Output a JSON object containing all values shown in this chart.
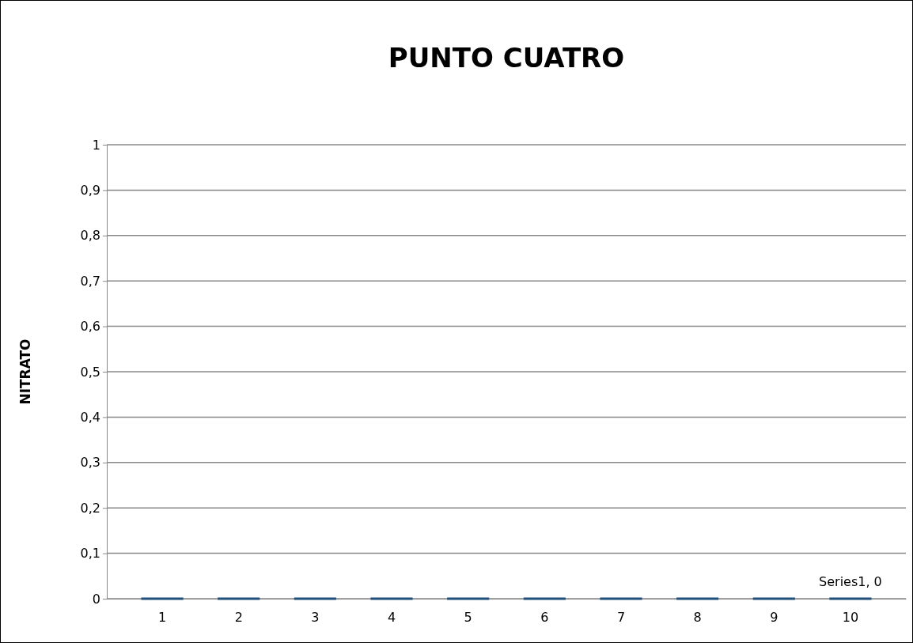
{
  "chart_data": {
    "type": "bar",
    "title": "PUNTO CUATRO",
    "ylabel": "NITRATO",
    "categories": [
      "1",
      "2",
      "3",
      "4",
      "5",
      "6",
      "7",
      "8",
      "9",
      "10"
    ],
    "values": [
      0,
      0,
      0,
      0,
      0,
      0,
      0,
      0,
      0,
      0
    ],
    "value_labels": [
      null,
      null,
      null,
      null,
      null,
      null,
      null,
      null,
      null,
      "Series1, 0"
    ],
    "color": "#1f4e79",
    "ylim": [
      0,
      1
    ],
    "yticks": [
      0,
      {
        "value": 0.1,
        "label": "0,1"
      },
      {
        "value": 0.2,
        "label": "0,2"
      },
      {
        "value": 0.3,
        "label": "0,3"
      },
      {
        "value": 0.4,
        "label": "0,4"
      },
      {
        "value": 0.5,
        "label": "0,5"
      },
      {
        "value": 0.6,
        "label": "0,6"
      },
      {
        "value": 0.7,
        "label": "0,7"
      },
      {
        "value": 0.8,
        "label": "0,8"
      },
      {
        "value": 0.9,
        "label": "0,9"
      },
      1
    ],
    "grid": "y"
  }
}
